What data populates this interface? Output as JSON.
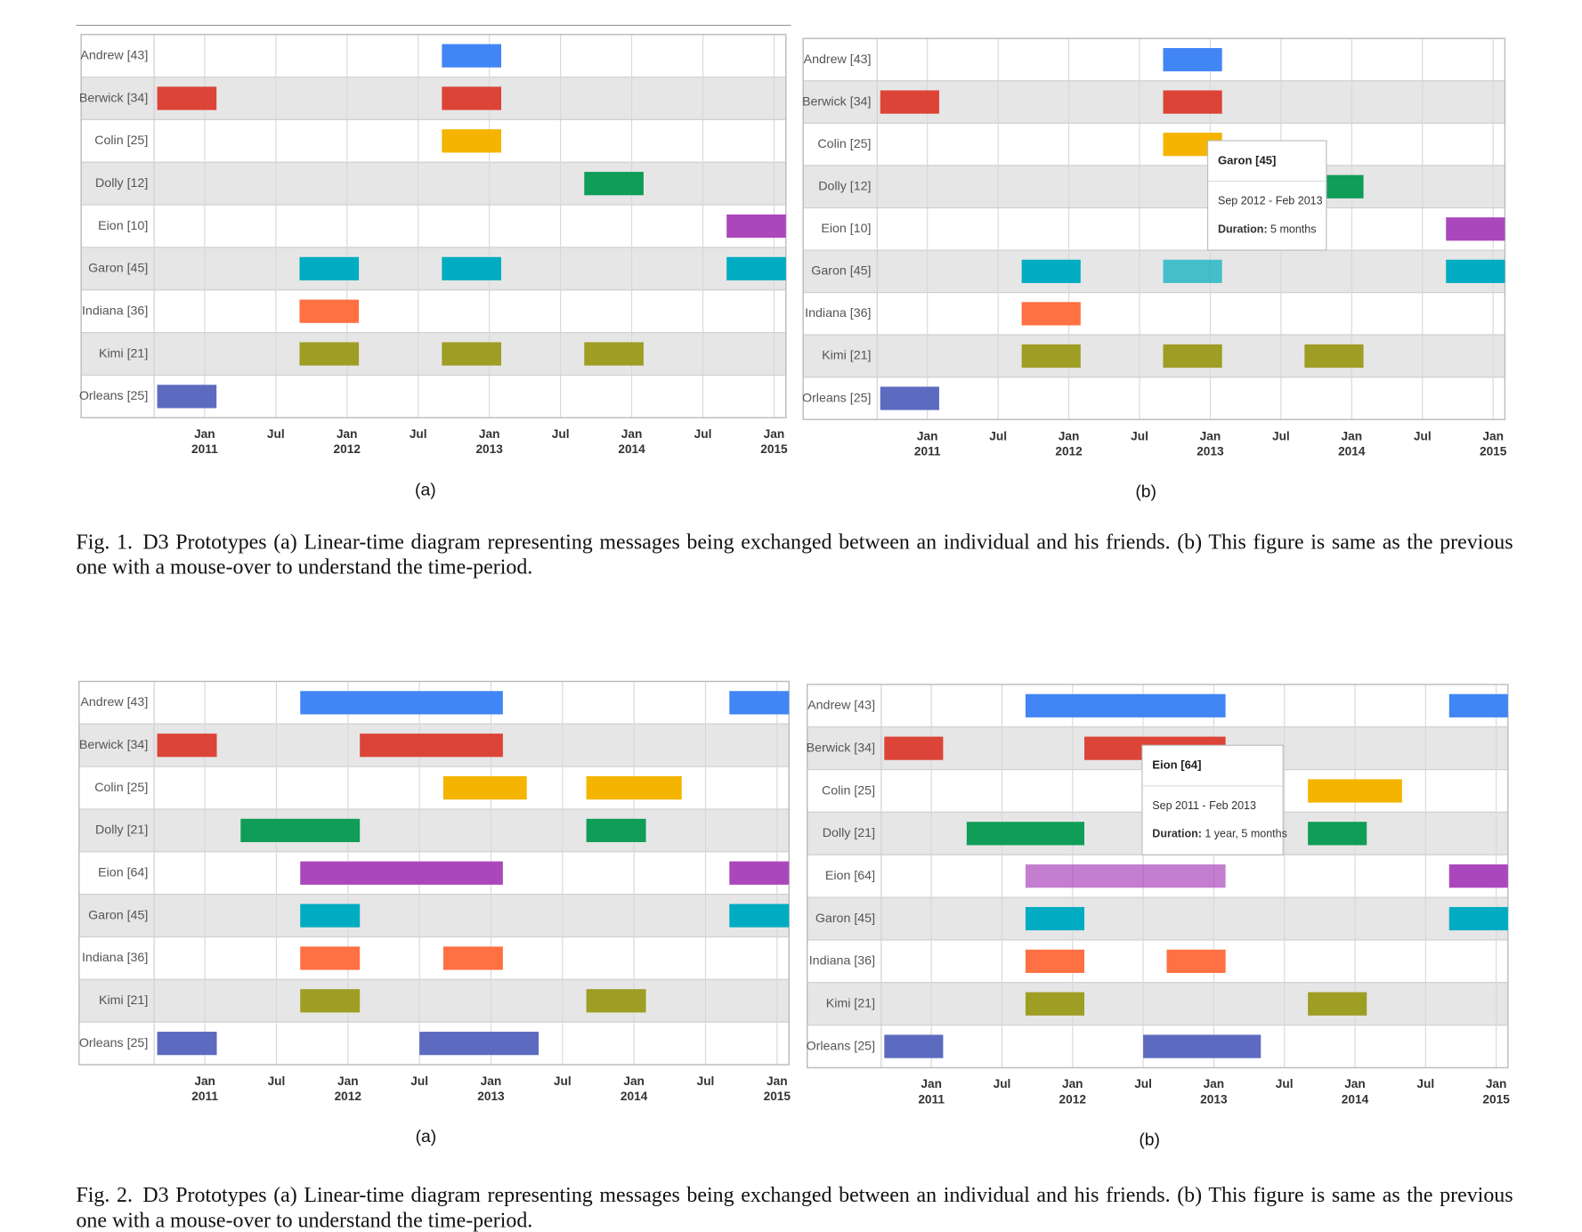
{
  "chart_data": [
    {
      "type": "timeline",
      "subcaption": "(a)",
      "xlim": [
        "2010-09",
        "2015-02"
      ],
      "xticks": [
        {
          "value": "2011-01",
          "label": "Jan 2011"
        },
        {
          "value": "2011-07",
          "label": "Jul"
        },
        {
          "value": "2012-01",
          "label": "Jan 2012"
        },
        {
          "value": "2012-07",
          "label": "Jul"
        },
        {
          "value": "2013-01",
          "label": "Jan 2013"
        },
        {
          "value": "2013-07",
          "label": "Jul"
        },
        {
          "value": "2014-01",
          "label": "Jan 2014"
        },
        {
          "value": "2014-07",
          "label": "Jul"
        },
        {
          "value": "2015-01",
          "label": "Jan 2015"
        }
      ],
      "series": [
        {
          "name": "Andrew [43]",
          "color": "#4285f4",
          "bars": [
            [
              "2012-09",
              "2013-02"
            ]
          ]
        },
        {
          "name": "Berwick [34]",
          "color": "#db4437",
          "bars": [
            [
              "2010-09",
              "2011-02"
            ],
            [
              "2012-09",
              "2013-02"
            ]
          ]
        },
        {
          "name": "Colin [25]",
          "color": "#f4b400",
          "bars": [
            [
              "2012-09",
              "2013-02"
            ]
          ]
        },
        {
          "name": "Dolly [12]",
          "color": "#0f9d58",
          "bars": [
            [
              "2013-09",
              "2014-02"
            ]
          ]
        },
        {
          "name": "Eion [10]",
          "color": "#ab47bc",
          "bars": [
            [
              "2014-09",
              "2015-02"
            ]
          ]
        },
        {
          "name": "Garon [45]",
          "color": "#00acc1",
          "bars": [
            [
              "2011-09",
              "2012-02"
            ],
            [
              "2012-09",
              "2013-02"
            ],
            [
              "2014-09",
              "2015-02"
            ]
          ]
        },
        {
          "name": "Indiana [36]",
          "color": "#ff7043",
          "bars": [
            [
              "2011-09",
              "2012-02"
            ]
          ]
        },
        {
          "name": "Kimi [21]",
          "color": "#9e9d24",
          "bars": [
            [
              "2011-09",
              "2012-02"
            ],
            [
              "2012-09",
              "2013-02"
            ],
            [
              "2013-09",
              "2014-02"
            ]
          ]
        },
        {
          "name": "Orleans [25]",
          "color": "#5c6bc0",
          "bars": [
            [
              "2010-09",
              "2011-02"
            ]
          ]
        }
      ]
    },
    {
      "type": "timeline",
      "subcaption": "(b)",
      "xlim": [
        "2010-09",
        "2015-02"
      ],
      "xticks": [
        {
          "value": "2011-01",
          "label": "Jan 2011"
        },
        {
          "value": "2011-07",
          "label": "Jul"
        },
        {
          "value": "2012-01",
          "label": "Jan 2012"
        },
        {
          "value": "2012-07",
          "label": "Jul"
        },
        {
          "value": "2013-01",
          "label": "Jan 2013"
        },
        {
          "value": "2013-07",
          "label": "Jul"
        },
        {
          "value": "2014-01",
          "label": "Jan 2014"
        },
        {
          "value": "2014-07",
          "label": "Jul"
        },
        {
          "value": "2015-01",
          "label": "Jan 2015"
        }
      ],
      "series": [
        {
          "name": "Andrew [43]",
          "color": "#4285f4",
          "bars": [
            [
              "2012-09",
              "2013-02"
            ]
          ]
        },
        {
          "name": "Berwick [34]",
          "color": "#db4437",
          "bars": [
            [
              "2010-09",
              "2011-02"
            ],
            [
              "2012-09",
              "2013-02"
            ]
          ]
        },
        {
          "name": "Colin [25]",
          "color": "#f4b400",
          "bars": [
            [
              "2012-09",
              "2013-02"
            ]
          ]
        },
        {
          "name": "Dolly [12]",
          "color": "#0f9d58",
          "bars": [
            [
              "2013-09",
              "2014-02"
            ]
          ]
        },
        {
          "name": "Eion [10]",
          "color": "#ab47bc",
          "bars": [
            [
              "2014-09",
              "2015-02"
            ]
          ]
        },
        {
          "name": "Garon [45]",
          "color": "#00acc1",
          "bars": [
            [
              "2011-09",
              "2012-02"
            ],
            [
              "2012-09",
              "2013-02"
            ],
            [
              "2014-09",
              "2015-02"
            ]
          ]
        },
        {
          "name": "Indiana [36]",
          "color": "#ff7043",
          "bars": [
            [
              "2011-09",
              "2012-02"
            ]
          ]
        },
        {
          "name": "Kimi [21]",
          "color": "#9e9d24",
          "bars": [
            [
              "2011-09",
              "2012-02"
            ],
            [
              "2012-09",
              "2013-02"
            ],
            [
              "2013-09",
              "2014-02"
            ]
          ]
        },
        {
          "name": "Orleans [25]",
          "color": "#5c6bc0",
          "bars": [
            [
              "2010-09",
              "2011-02"
            ]
          ]
        }
      ],
      "tooltip": {
        "series": 5,
        "bar": 1,
        "title": "Garon [45]",
        "range": "Sep 2012 - Feb 2013",
        "duration_label": "Duration:",
        "duration": "5 months"
      }
    },
    {
      "type": "timeline",
      "subcaption": "(a)",
      "xlim": [
        "2010-09",
        "2015-02"
      ],
      "xticks": [
        {
          "value": "2011-01",
          "label": "Jan 2011"
        },
        {
          "value": "2011-07",
          "label": "Jul"
        },
        {
          "value": "2012-01",
          "label": "Jan 2012"
        },
        {
          "value": "2012-07",
          "label": "Jul"
        },
        {
          "value": "2013-01",
          "label": "Jan 2013"
        },
        {
          "value": "2013-07",
          "label": "Jul"
        },
        {
          "value": "2014-01",
          "label": "Jan 2014"
        },
        {
          "value": "2014-07",
          "label": "Jul"
        },
        {
          "value": "2015-01",
          "label": "Jan 2015"
        }
      ],
      "series": [
        {
          "name": "Andrew [43]",
          "color": "#4285f4",
          "bars": [
            [
              "2011-09",
              "2013-02"
            ],
            [
              "2014-09",
              "2015-02"
            ]
          ]
        },
        {
          "name": "Berwick [34]",
          "color": "#db4437",
          "bars": [
            [
              "2010-09",
              "2011-02"
            ],
            [
              "2012-02",
              "2013-02"
            ]
          ]
        },
        {
          "name": "Colin [25]",
          "color": "#f4b400",
          "bars": [
            [
              "2012-09",
              "2013-04"
            ],
            [
              "2013-09",
              "2014-05"
            ]
          ]
        },
        {
          "name": "Dolly [21]",
          "color": "#0f9d58",
          "bars": [
            [
              "2011-04",
              "2012-02"
            ],
            [
              "2013-09",
              "2014-02"
            ]
          ]
        },
        {
          "name": "Eion [64]",
          "color": "#ab47bc",
          "bars": [
            [
              "2011-09",
              "2013-02"
            ],
            [
              "2014-09",
              "2015-02"
            ]
          ]
        },
        {
          "name": "Garon [45]",
          "color": "#00acc1",
          "bars": [
            [
              "2011-09",
              "2012-02"
            ],
            [
              "2014-09",
              "2015-02"
            ]
          ]
        },
        {
          "name": "Indiana [36]",
          "color": "#ff7043",
          "bars": [
            [
              "2011-09",
              "2012-02"
            ],
            [
              "2012-09",
              "2013-02"
            ]
          ]
        },
        {
          "name": "Kimi [21]",
          "color": "#9e9d24",
          "bars": [
            [
              "2011-09",
              "2012-02"
            ],
            [
              "2013-09",
              "2014-02"
            ]
          ]
        },
        {
          "name": "Orleans [25]",
          "color": "#5c6bc0",
          "bars": [
            [
              "2010-09",
              "2011-02"
            ],
            [
              "2012-07",
              "2013-05"
            ]
          ]
        }
      ]
    },
    {
      "type": "timeline",
      "subcaption": "(b)",
      "xlim": [
        "2010-09",
        "2015-02"
      ],
      "xticks": [
        {
          "value": "2011-01",
          "label": "Jan 2011"
        },
        {
          "value": "2011-07",
          "label": "Jul"
        },
        {
          "value": "2012-01",
          "label": "Jan 2012"
        },
        {
          "value": "2012-07",
          "label": "Jul"
        },
        {
          "value": "2013-01",
          "label": "Jan 2013"
        },
        {
          "value": "2013-07",
          "label": "Jul"
        },
        {
          "value": "2014-01",
          "label": "Jan 2014"
        },
        {
          "value": "2014-07",
          "label": "Jul"
        },
        {
          "value": "2015-01",
          "label": "Jan 2015"
        }
      ],
      "series": [
        {
          "name": "Andrew [43]",
          "color": "#4285f4",
          "bars": [
            [
              "2011-09",
              "2013-02"
            ],
            [
              "2014-09",
              "2015-02"
            ]
          ]
        },
        {
          "name": "Berwick [34]",
          "color": "#db4437",
          "bars": [
            [
              "2010-09",
              "2011-02"
            ],
            [
              "2012-02",
              "2013-02"
            ]
          ]
        },
        {
          "name": "Colin [25]",
          "color": "#f4b400",
          "bars": [
            [
              "2012-09",
              "2013-04"
            ],
            [
              "2013-09",
              "2014-05"
            ]
          ]
        },
        {
          "name": "Dolly [21]",
          "color": "#0f9d58",
          "bars": [
            [
              "2011-04",
              "2012-02"
            ],
            [
              "2013-09",
              "2014-02"
            ]
          ]
        },
        {
          "name": "Eion [64]",
          "color": "#ab47bc",
          "bars": [
            [
              "2011-09",
              "2013-02"
            ],
            [
              "2014-09",
              "2015-02"
            ]
          ]
        },
        {
          "name": "Garon [45]",
          "color": "#00acc1",
          "bars": [
            [
              "2011-09",
              "2012-02"
            ],
            [
              "2014-09",
              "2015-02"
            ]
          ]
        },
        {
          "name": "Indiana [36]",
          "color": "#ff7043",
          "bars": [
            [
              "2011-09",
              "2012-02"
            ],
            [
              "2012-09",
              "2013-02"
            ]
          ]
        },
        {
          "name": "Kimi [21]",
          "color": "#9e9d24",
          "bars": [
            [
              "2011-09",
              "2012-02"
            ],
            [
              "2013-09",
              "2014-02"
            ]
          ]
        },
        {
          "name": "Orleans [25]",
          "color": "#5c6bc0",
          "bars": [
            [
              "2010-09",
              "2011-02"
            ],
            [
              "2012-07",
              "2013-05"
            ]
          ]
        }
      ],
      "tooltip": {
        "series": 4,
        "bar": 0,
        "title": "Eion [64]",
        "range": "Sep 2011 - Feb 2013",
        "duration_label": "Duration:",
        "duration": "1 year, 5 months"
      }
    }
  ],
  "captions": [
    {
      "label": "Fig. 1.",
      "text": "D3 Prototypes (a) Linear-time diagram representing messages being exchanged between an individual and his friends. (b) This figure is same as the previous one with a mouse-over to understand the time-period."
    },
    {
      "label": "Fig. 2.",
      "text": "D3 Prototypes (a) Linear-time diagram representing messages being exchanged between an individual and his friends. (b) This figure is same as the previous one with a mouse-over to understand the time-period."
    }
  ]
}
